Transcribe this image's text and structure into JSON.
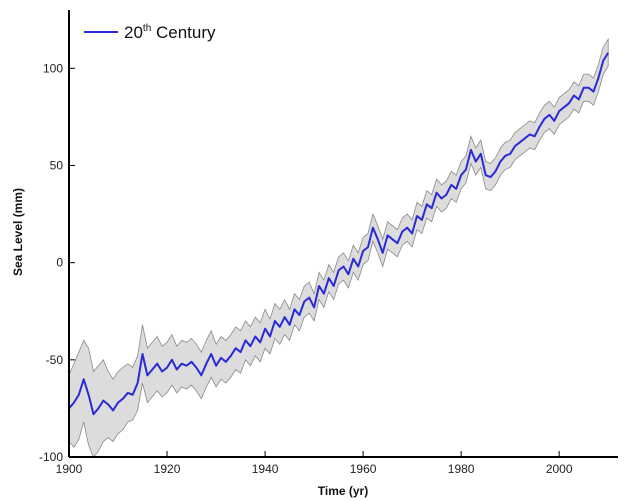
{
  "chart_data": {
    "type": "line",
    "title": "",
    "xlabel": "Time (yr)",
    "ylabel": "Sea Level (mm)",
    "xlim": [
      1900,
      2012
    ],
    "ylim": [
      -100,
      130
    ],
    "x_ticks": [
      "1900",
      "1920",
      "1940",
      "1960",
      "1980",
      "2000"
    ],
    "y_ticks": [
      "-100",
      "-50",
      "0",
      "50",
      "100"
    ],
    "legend": {
      "position": "top-left",
      "label_main": "20",
      "label_sup": "th",
      "label_rest": " Century"
    },
    "grid": false,
    "colors": {
      "line": "#2a2ad6",
      "band": "#dcdcdc",
      "band_edge": "#8a8a8a",
      "axis": "#000000"
    },
    "series": [
      {
        "name": "20th Century",
        "x": [
          1900,
          1901,
          1902,
          1903,
          1904,
          1905,
          1906,
          1907,
          1908,
          1909,
          1910,
          1911,
          1912,
          1913,
          1914,
          1915,
          1916,
          1917,
          1918,
          1919,
          1920,
          1921,
          1922,
          1923,
          1924,
          1925,
          1926,
          1927,
          1928,
          1929,
          1930,
          1931,
          1932,
          1933,
          1934,
          1935,
          1936,
          1937,
          1938,
          1939,
          1940,
          1941,
          1942,
          1943,
          1944,
          1945,
          1946,
          1947,
          1948,
          1949,
          1950,
          1951,
          1952,
          1953,
          1954,
          1955,
          1956,
          1957,
          1958,
          1959,
          1960,
          1961,
          1962,
          1963,
          1964,
          1965,
          1966,
          1967,
          1968,
          1969,
          1970,
          1971,
          1972,
          1973,
          1974,
          1975,
          1976,
          1977,
          1978,
          1979,
          1980,
          1981,
          1982,
          1983,
          1984,
          1985,
          1986,
          1987,
          1988,
          1989,
          1990,
          1991,
          1992,
          1993,
          1994,
          1995,
          1996,
          1997,
          1998,
          1999,
          2000,
          2001,
          2002,
          2003,
          2004,
          2005,
          2006,
          2007,
          2008,
          2009,
          2010
        ],
        "values": [
          -75,
          -72,
          -68,
          -60,
          -68,
          -78,
          -75,
          -71,
          -73,
          -76,
          -72,
          -70,
          -67,
          -68,
          -62,
          -47,
          -58,
          -55,
          -52,
          -56,
          -54,
          -50,
          -55,
          -52,
          -53,
          -51,
          -54,
          -58,
          -52,
          -47,
          -53,
          -49,
          -51,
          -48,
          -44,
          -46,
          -40,
          -43,
          -38,
          -41,
          -34,
          -38,
          -30,
          -33,
          -28,
          -32,
          -24,
          -27,
          -20,
          -18,
          -23,
          -12,
          -16,
          -8,
          -12,
          -4,
          -2,
          -6,
          2,
          -2,
          6,
          8,
          18,
          12,
          5,
          14,
          12,
          10,
          16,
          18,
          15,
          24,
          22,
          30,
          28,
          36,
          33,
          35,
          40,
          38,
          45,
          48,
          58,
          52,
          56,
          45,
          44,
          47,
          52,
          55,
          56,
          60,
          62,
          64,
          66,
          65,
          70,
          74,
          76,
          73,
          78,
          80,
          82,
          86,
          84,
          90,
          90,
          88,
          95,
          104,
          108
        ],
        "band_lower": [
          -92,
          -95,
          -91,
          -82,
          -94,
          -100,
          -97,
          -92,
          -90,
          -92,
          -88,
          -86,
          -82,
          -81,
          -76,
          -62,
          -72,
          -69,
          -66,
          -69,
          -67,
          -63,
          -67,
          -64,
          -65,
          -63,
          -66,
          -70,
          -64,
          -59,
          -64,
          -60,
          -62,
          -59,
          -55,
          -57,
          -50,
          -53,
          -48,
          -51,
          -44,
          -47,
          -39,
          -42,
          -37,
          -40,
          -32,
          -35,
          -28,
          -26,
          -30,
          -19,
          -23,
          -15,
          -19,
          -11,
          -9,
          -13,
          -5,
          -9,
          -1,
          1,
          11,
          5,
          -2,
          7,
          5,
          3,
          9,
          11,
          8,
          17,
          15,
          23,
          21,
          29,
          26,
          28,
          33,
          31,
          38,
          41,
          51,
          45,
          49,
          38,
          37,
          40,
          45,
          48,
          49,
          53,
          55,
          57,
          59,
          58,
          63,
          67,
          69,
          66,
          71,
          73,
          75,
          79,
          77,
          83,
          83,
          81,
          88,
          97,
          101
        ],
        "band_upper": [
          -58,
          -52,
          -46,
          -40,
          -44,
          -56,
          -53,
          -50,
          -56,
          -60,
          -56,
          -54,
          -52,
          -54,
          -48,
          -32,
          -44,
          -41,
          -38,
          -43,
          -41,
          -37,
          -43,
          -40,
          -41,
          -39,
          -42,
          -46,
          -40,
          -35,
          -42,
          -38,
          -40,
          -37,
          -33,
          -35,
          -30,
          -33,
          -28,
          -31,
          -24,
          -29,
          -21,
          -24,
          -19,
          -24,
          -16,
          -19,
          -12,
          -10,
          -16,
          -5,
          -9,
          -1,
          -5,
          3,
          5,
          1,
          9,
          5,
          13,
          15,
          25,
          19,
          12,
          21,
          19,
          17,
          23,
          25,
          22,
          31,
          29,
          37,
          35,
          43,
          40,
          42,
          47,
          45,
          52,
          55,
          65,
          59,
          63,
          52,
          51,
          54,
          59,
          62,
          63,
          67,
          69,
          71,
          73,
          72,
          77,
          81,
          83,
          80,
          85,
          87,
          89,
          93,
          91,
          97,
          97,
          95,
          102,
          111,
          115
        ]
      }
    ]
  }
}
